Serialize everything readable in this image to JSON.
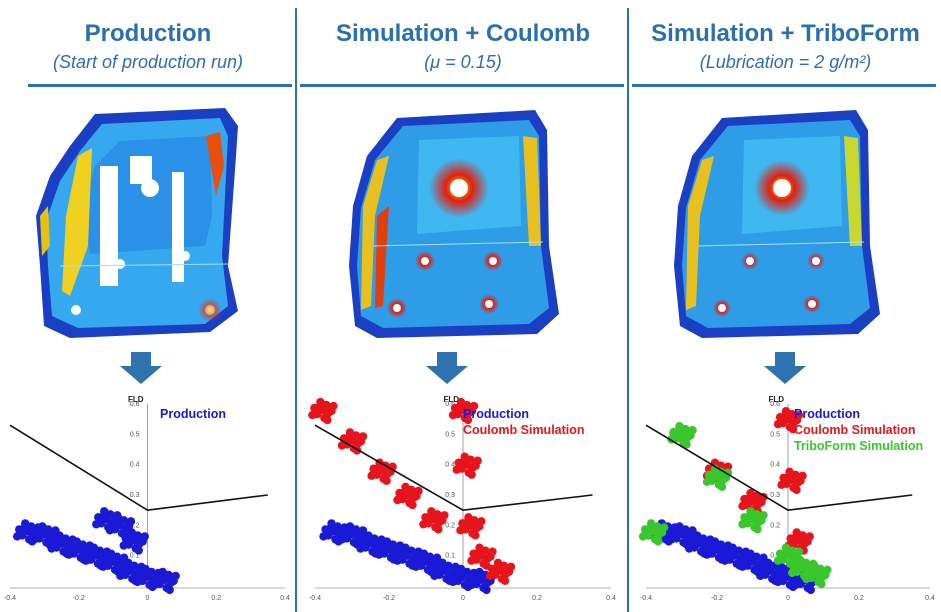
{
  "panels": [
    {
      "title": "Production",
      "subtitle": "(Start of production run)"
    },
    {
      "title": "Simulation + Coulomb",
      "subtitle": "(μ = 0.15)"
    },
    {
      "title": "Simulation + TriboForm",
      "subtitle": "(Lubrication = 2 g/m²)"
    }
  ],
  "colors": {
    "accent": "#2f72b0",
    "production": "#1a1ad6",
    "coulomb": "#e8141c",
    "triboform": "#39c72c",
    "arrow": "#2f72b0"
  },
  "icons": [
    "down-arrow-icon"
  ],
  "chart_data": [
    {
      "type": "scatter",
      "title": "",
      "ylabel": "FLD",
      "xlim": [
        -0.4,
        0.4
      ],
      "ylim": [
        0,
        0.6
      ],
      "x_ticks": [
        "-0.4",
        "-0.2",
        "0",
        "0.2",
        "0.4"
      ],
      "y_ticks": [
        "0.6",
        "0.5",
        "0.4",
        "0.3",
        "0.2",
        "0.1"
      ],
      "series": [
        {
          "name": "Production",
          "color": "#1a1ad6",
          "points": [
            [
              -0.35,
              0.18
            ],
            [
              -0.3,
              0.17
            ],
            [
              -0.25,
              0.14
            ],
            [
              -0.2,
              0.12
            ],
            [
              -0.15,
              0.1
            ],
            [
              -0.1,
              0.08
            ],
            [
              -0.05,
              0.05
            ],
            [
              0,
              0.03
            ],
            [
              0.05,
              0.02
            ],
            [
              -0.12,
              0.22
            ],
            [
              -0.08,
              0.2
            ],
            [
              -0.04,
              0.15
            ]
          ]
        }
      ],
      "fld_curve": [
        [
          -0.4,
          0.53
        ],
        [
          0,
          0.25
        ],
        [
          0.35,
          0.3
        ]
      ]
    },
    {
      "type": "scatter",
      "title": "",
      "ylabel": "FLD",
      "xlim": [
        -0.4,
        0.4
      ],
      "ylim": [
        0,
        0.6
      ],
      "x_ticks": [
        "-0.4",
        "-0.2",
        "0",
        "0.2",
        "0.4"
      ],
      "y_ticks": [
        "0.6",
        "0.5",
        "0.4",
        "0.3",
        "0.2",
        "0.1"
      ],
      "series": [
        {
          "name": "Production",
          "color": "#1a1ad6",
          "points": [
            [
              -0.35,
              0.18
            ],
            [
              -0.3,
              0.17
            ],
            [
              -0.25,
              0.14
            ],
            [
              -0.2,
              0.12
            ],
            [
              -0.15,
              0.1
            ],
            [
              -0.1,
              0.08
            ],
            [
              -0.05,
              0.05
            ],
            [
              0,
              0.03
            ],
            [
              0.05,
              0.02
            ]
          ]
        },
        {
          "name": "Coulomb Simulation",
          "color": "#e8141c",
          "points": [
            [
              -0.38,
              0.58
            ],
            [
              -0.3,
              0.48
            ],
            [
              -0.22,
              0.38
            ],
            [
              -0.15,
              0.3
            ],
            [
              -0.08,
              0.22
            ],
            [
              0,
              0.58
            ],
            [
              0.01,
              0.4
            ],
            [
              0.02,
              0.2
            ],
            [
              0.05,
              0.1
            ],
            [
              0.1,
              0.05
            ]
          ]
        }
      ],
      "fld_curve": [
        [
          -0.4,
          0.53
        ],
        [
          0,
          0.25
        ],
        [
          0.35,
          0.3
        ]
      ]
    },
    {
      "type": "scatter",
      "title": "",
      "ylabel": "FLD",
      "xlim": [
        -0.4,
        0.4
      ],
      "ylim": [
        0,
        0.6
      ],
      "x_ticks": [
        "-0.4",
        "-0.2",
        "0",
        "0.2",
        "0.4"
      ],
      "y_ticks": [
        "0.6",
        "0.5",
        "0.4",
        "0.3",
        "0.2",
        "0.1"
      ],
      "series": [
        {
          "name": "Production",
          "color": "#1a1ad6",
          "points": [
            [
              -0.35,
              0.18
            ],
            [
              -0.3,
              0.17
            ],
            [
              -0.25,
              0.14
            ],
            [
              -0.2,
              0.12
            ],
            [
              -0.15,
              0.1
            ],
            [
              -0.1,
              0.08
            ],
            [
              -0.05,
              0.05
            ],
            [
              0,
              0.03
            ],
            [
              0.05,
              0.02
            ]
          ]
        },
        {
          "name": "Coulomb Simulation",
          "color": "#e8141c",
          "points": [
            [
              -0.3,
              0.5
            ],
            [
              -0.2,
              0.38
            ],
            [
              -0.1,
              0.28
            ],
            [
              0,
              0.55
            ],
            [
              0.01,
              0.35
            ],
            [
              0.03,
              0.15
            ]
          ]
        },
        {
          "name": "TriboForm Simulation",
          "color": "#39c72c",
          "points": [
            [
              -0.38,
              0.18
            ],
            [
              -0.3,
              0.5
            ],
            [
              -0.2,
              0.36
            ],
            [
              -0.1,
              0.22
            ],
            [
              0,
              0.1
            ],
            [
              0.04,
              0.06
            ],
            [
              0.08,
              0.04
            ]
          ]
        }
      ],
      "fld_curve": [
        [
          -0.4,
          0.53
        ],
        [
          0,
          0.25
        ],
        [
          0.35,
          0.3
        ]
      ]
    }
  ]
}
